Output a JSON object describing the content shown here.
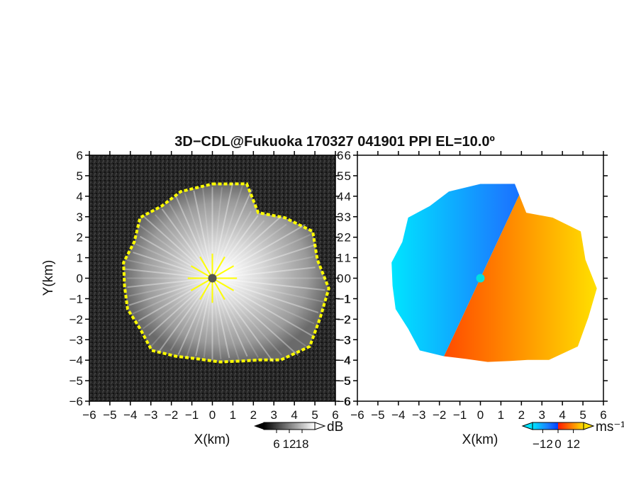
{
  "title": "3D−CDL@Fukuoka 170327 041901 PPI EL=10.0º",
  "chart_data": [
    {
      "type": "heatmap",
      "panel": "left",
      "variable": "SNR",
      "xlabel": "X(km)",
      "ylabel": "Y(km)",
      "xlim": [
        -6,
        6
      ],
      "ylim": [
        -6,
        6
      ],
      "xticks": [
        "−6",
        "−5",
        "−4",
        "−3",
        "−2",
        "−1",
        "0",
        "1",
        "2",
        "3",
        "4",
        "5",
        "6"
      ],
      "yticks": [
        "−6",
        "−5",
        "−4",
        "−3",
        "−2",
        "−1",
        "0",
        "1",
        "2",
        "3",
        "4",
        "5",
        "6"
      ],
      "background": "#222222",
      "colorbar": {
        "unit": "dB",
        "ticks": [
          "6",
          "12",
          "18"
        ],
        "tick_values": [
          6,
          12,
          18
        ],
        "range": [
          0,
          24
        ],
        "colors": [
          "#000000",
          "#ffffff"
        ]
      },
      "data_boundary_radius_km": [
        {
          "az": 0,
          "r": 4.6
        },
        {
          "az": 20,
          "r": 4.9
        },
        {
          "az": 35,
          "r": 3.9
        },
        {
          "az": 50,
          "r": 4.6
        },
        {
          "az": 65,
          "r": 5.4
        },
        {
          "az": 80,
          "r": 5.2
        },
        {
          "az": 95,
          "r": 5.7
        },
        {
          "az": 110,
          "r": 5.6
        },
        {
          "az": 125,
          "r": 5.8
        },
        {
          "az": 140,
          "r": 5.2
        },
        {
          "az": 150,
          "r": 4.6
        },
        {
          "az": 160,
          "r": 4.3
        },
        {
          "az": 175,
          "r": 4.1
        },
        {
          "az": 190,
          "r": 4.0
        },
        {
          "az": 205,
          "r": 4.2
        },
        {
          "az": 220,
          "r": 4.6
        },
        {
          "az": 235,
          "r": 4.3
        },
        {
          "az": 250,
          "r": 4.4
        },
        {
          "az": 265,
          "r": 4.3
        },
        {
          "az": 280,
          "r": 4.4
        },
        {
          "az": 295,
          "r": 4.2
        },
        {
          "az": 310,
          "r": 4.6
        },
        {
          "az": 325,
          "r": 4.3
        },
        {
          "az": 340,
          "r": 4.5
        }
      ],
      "edge_marker_color": "#ffff00"
    },
    {
      "type": "heatmap",
      "panel": "right",
      "variable": "Doppler velocity",
      "xlabel": "X(km)",
      "ylabel": "",
      "xlim": [
        -6,
        6
      ],
      "ylim": [
        -6,
        6
      ],
      "xticks": [
        "−6",
        "−5",
        "−4",
        "−3",
        "−2",
        "−1",
        "0",
        "1",
        "2",
        "3",
        "4",
        "5",
        "6"
      ],
      "yticks": [
        "−6",
        "−5",
        "−4",
        "−3",
        "−2",
        "−1",
        "0",
        "1",
        "2",
        "3",
        "4",
        "5",
        "6"
      ],
      "background": "#ffffff",
      "zero_line_angle_deg": 25,
      "colorbar": {
        "unit": "ms⁻¹",
        "ticks": [
          "−12",
          "0",
          "12"
        ],
        "tick_values": [
          -12,
          0,
          12
        ],
        "range": [
          -20,
          20
        ],
        "colors": [
          "#00e5ff",
          "#1a7dff",
          "#0040ff",
          "#ff1a00",
          "#ff7a00",
          "#ffe000"
        ]
      },
      "center_marker_color": "#00e0e0"
    }
  ]
}
